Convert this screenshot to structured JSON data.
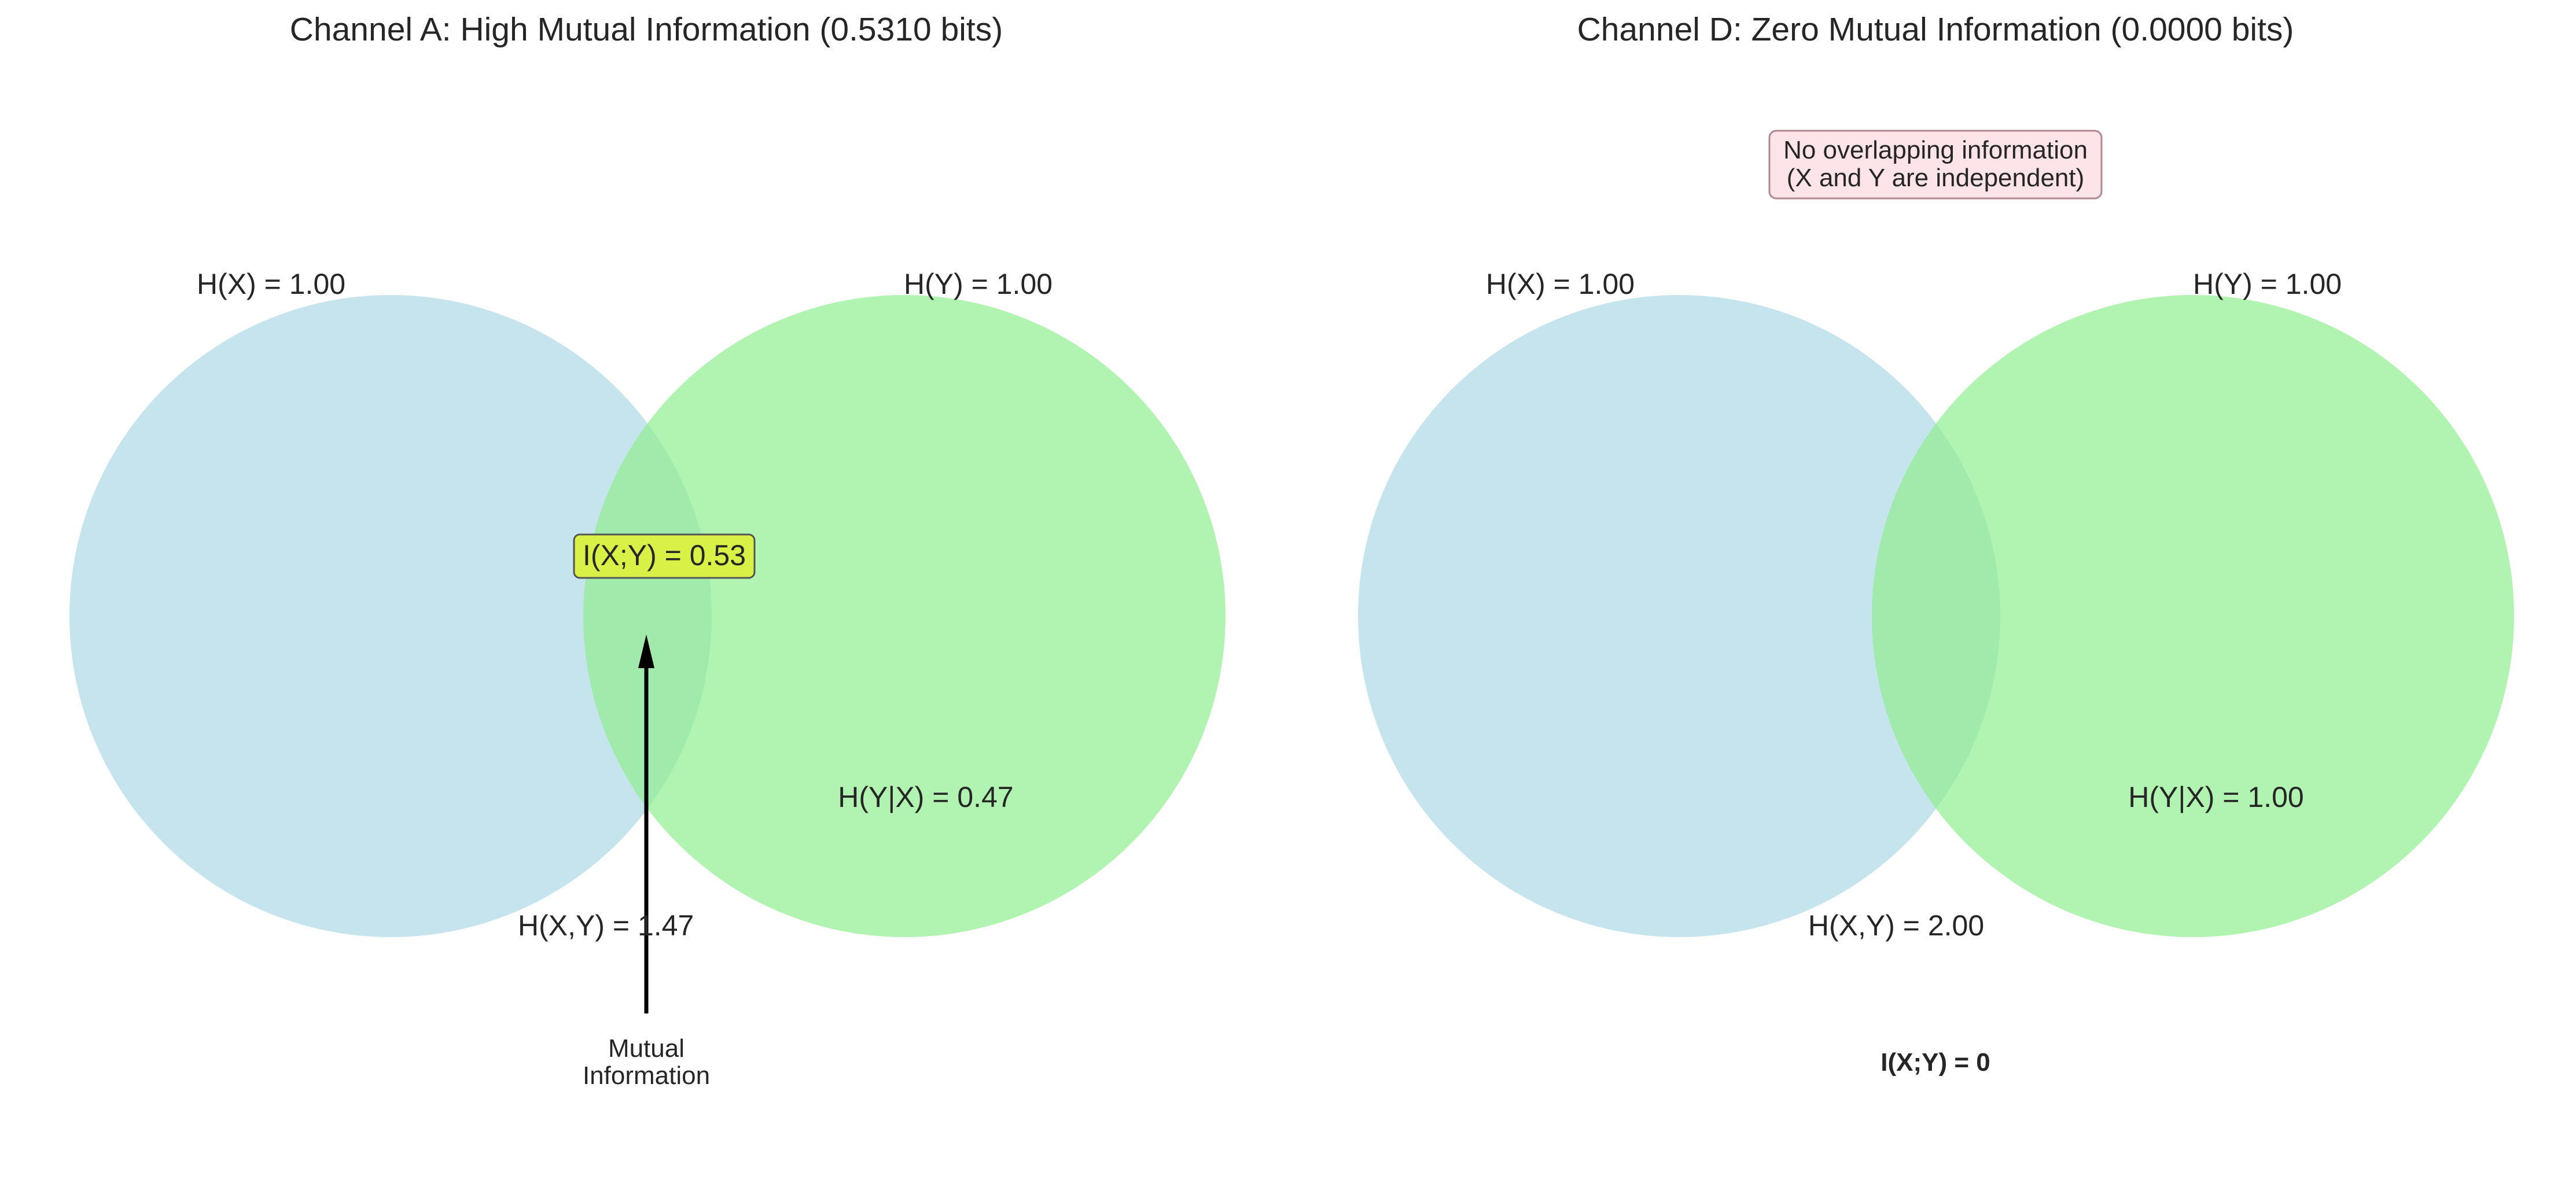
{
  "panels": [
    {
      "title": "Channel A: High Mutual Information (0.5310 bits)",
      "hx_label": "H(X) = 1.00",
      "hy_label": "H(Y) = 1.00",
      "mi_box_label": "I(X;Y) = 0.53",
      "hy_given_x_label": "H(Y|X) = 0.47",
      "hxy_label": "H(X,Y) = 1.47",
      "arrow_label_line1": "Mutual",
      "arrow_label_line2": "Information"
    },
    {
      "title": "Channel D: Zero Mutual Information (0.0000 bits)",
      "hx_label": "H(X) = 1.00",
      "hy_label": "H(Y) = 1.00",
      "note_line1": "No overlapping information",
      "note_line2": "(X and Y are independent)",
      "hy_given_x_label": "H(Y|X) = 1.00",
      "hxy_label": "H(X,Y) = 2.00",
      "mi_label": "I(X;Y) = 0"
    }
  ],
  "colors": {
    "x_circle": "#add8e6",
    "y_circle": "#90ee90",
    "mi_box_fill": "#d9f046",
    "note_box_fill": "#fde4e8",
    "note_box_border": "#b08890",
    "arrow": "#000000",
    "text": "#262626"
  }
}
